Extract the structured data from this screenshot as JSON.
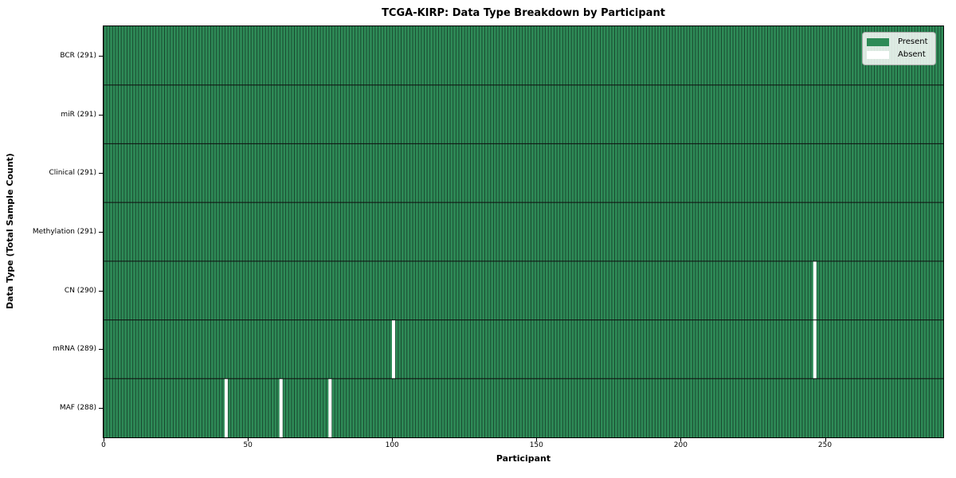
{
  "chart_data": {
    "type": "heatmap",
    "title": "TCGA-KIRP: Data Type Breakdown by Participant",
    "xlabel": "Participant",
    "ylabel": "Data Type (Total Sample Count)",
    "n_participants": 291,
    "x_ticks": [
      0,
      50,
      100,
      150,
      200,
      250
    ],
    "rows": [
      {
        "label": "BCR (291)",
        "data_type": "BCR",
        "present_count": 291,
        "absent_participants": []
      },
      {
        "label": "miR (291)",
        "data_type": "miR",
        "present_count": 291,
        "absent_participants": []
      },
      {
        "label": "Clinical (291)",
        "data_type": "Clinical",
        "present_count": 291,
        "absent_participants": []
      },
      {
        "label": "Methylation (291)",
        "data_type": "Methylation",
        "present_count": 291,
        "absent_participants": []
      },
      {
        "label": "CN (290)",
        "data_type": "CN",
        "present_count": 290,
        "absent_participants": [
          246
        ]
      },
      {
        "label": "mRNA (289)",
        "data_type": "mRNA",
        "present_count": 289,
        "absent_participants": [
          100,
          246
        ]
      },
      {
        "label": "MAF (288)",
        "data_type": "MAF",
        "present_count": 288,
        "absent_participants": [
          42,
          61,
          78
        ]
      }
    ],
    "legend": [
      {
        "label": "Present",
        "color": "#2e8b57"
      },
      {
        "label": "Absent",
        "color": "#ffffff"
      }
    ],
    "legend_position": "upper right",
    "colors": {
      "present": "#2e8b57",
      "absent": "#ffffff",
      "cell_edge": "#17432c",
      "row_divider": "#0f0f0f",
      "axis": "#000000",
      "background": "#ffffff"
    }
  }
}
